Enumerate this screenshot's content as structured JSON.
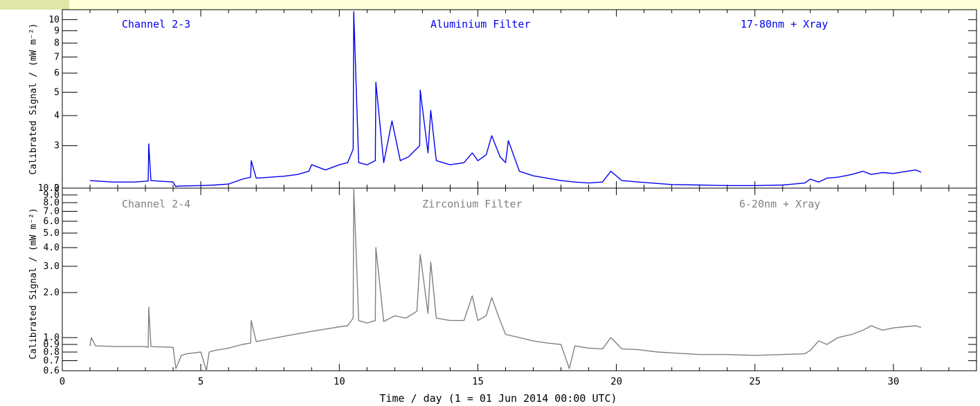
{
  "chart_data": [
    {
      "type": "line",
      "panel": "top",
      "channel_label": "Channel 2-3",
      "filter_label": "Aluminium Filter",
      "band_label": "17-80nm + Xray",
      "ylabel": "Calibrated Signal / (mW m⁻²)",
      "yscale": "log",
      "ylim": [
        2,
        11
      ],
      "yticks": [
        2,
        3,
        4,
        5,
        6,
        7,
        8,
        9,
        10
      ],
      "ytick_labels": [
        "2",
        "3",
        "4",
        "5",
        "6",
        "7",
        "8",
        "9",
        "10"
      ],
      "xlim": [
        0,
        33
      ],
      "series": [
        {
          "color": "#0000ee",
          "x": [
            1.0,
            1.8,
            2.6,
            3.1,
            3.12,
            3.2,
            4.0,
            4.1,
            4.2,
            5.0,
            5.5,
            6.0,
            6.5,
            6.8,
            6.82,
            7.0,
            7.5,
            8.0,
            8.5,
            8.9,
            9.0,
            9.5,
            10.0,
            10.3,
            10.5,
            10.52,
            10.7,
            11.0,
            11.3,
            11.32,
            11.6,
            11.9,
            12.2,
            12.5,
            12.9,
            12.92,
            13.2,
            13.3,
            13.5,
            14.0,
            14.5,
            14.8,
            15.0,
            15.3,
            15.5,
            15.8,
            16.0,
            16.1,
            16.5,
            17.0,
            17.5,
            18.0,
            18.5,
            19.0,
            19.5,
            19.8,
            20.2,
            20.8,
            21.5,
            22.0,
            23.0,
            24.0,
            25.0,
            26.0,
            26.8,
            27.0,
            27.3,
            27.6,
            28.0,
            28.5,
            28.9,
            29.2,
            29.6,
            30.0,
            30.4,
            30.8,
            31.0
          ],
          "y": [
            2.15,
            2.12,
            2.12,
            2.14,
            3.05,
            2.15,
            2.12,
            2.03,
            2.04,
            2.05,
            2.06,
            2.08,
            2.18,
            2.22,
            2.6,
            2.2,
            2.22,
            2.24,
            2.28,
            2.35,
            2.5,
            2.38,
            2.5,
            2.55,
            2.9,
            10.8,
            2.55,
            2.5,
            2.6,
            5.5,
            2.55,
            3.8,
            2.6,
            2.7,
            3.0,
            5.1,
            2.8,
            4.2,
            2.6,
            2.5,
            2.55,
            2.8,
            2.6,
            2.75,
            3.3,
            2.7,
            2.55,
            3.15,
            2.35,
            2.25,
            2.2,
            2.15,
            2.12,
            2.1,
            2.12,
            2.35,
            2.15,
            2.12,
            2.09,
            2.07,
            2.06,
            2.05,
            2.05,
            2.06,
            2.1,
            2.18,
            2.12,
            2.2,
            2.22,
            2.28,
            2.35,
            2.28,
            2.32,
            2.3,
            2.34,
            2.38,
            2.33
          ]
        }
      ]
    },
    {
      "type": "line",
      "panel": "bottom",
      "channel_label": "Channel 2-4",
      "filter_label": "Zirconium Filter",
      "band_label": "6-20nm + Xray",
      "xlabel": "Time / day (1 = 01 Jun 2014 00:00 UTC)",
      "ylabel": "Calibrated Signal / (mW m⁻²)",
      "yscale": "log",
      "ylim": [
        0.6,
        10
      ],
      "yticks": [
        0.6,
        0.7,
        0.8,
        0.9,
        1.0,
        2.0,
        3.0,
        4.0,
        5.0,
        6.0,
        7.0,
        8.0,
        9.0,
        10.0
      ],
      "ytick_labels": [
        "0.6",
        "0.7",
        "0.8",
        "0.9",
        "1.0",
        "2.0",
        "3.0",
        "4.0",
        "5.0",
        "6.0",
        "7.0",
        "8.0",
        "9.0",
        "10.0"
      ],
      "xlim": [
        0,
        33
      ],
      "xticks": [
        0,
        5,
        10,
        15,
        20,
        25,
        30
      ],
      "xtick_labels": [
        "0",
        "5",
        "10",
        "15",
        "20",
        "25",
        "30"
      ],
      "series": [
        {
          "color": "#808080",
          "x": [
            1.0,
            1.05,
            1.2,
            2.0,
            3.0,
            3.1,
            3.12,
            3.2,
            4.0,
            4.1,
            4.3,
            4.5,
            5.0,
            5.2,
            5.3,
            5.5,
            6.0,
            6.5,
            6.8,
            6.82,
            7.0,
            7.5,
            8.0,
            8.5,
            9.0,
            9.5,
            10.0,
            10.3,
            10.5,
            10.52,
            10.7,
            11.0,
            11.3,
            11.32,
            11.6,
            12.0,
            12.4,
            12.8,
            12.92,
            13.2,
            13.3,
            13.5,
            14.0,
            14.5,
            14.8,
            15.0,
            15.3,
            15.5,
            15.8,
            16.0,
            16.5,
            17.0,
            17.5,
            18.0,
            18.3,
            18.5,
            19.0,
            19.5,
            19.8,
            20.2,
            20.8,
            21.5,
            22.0,
            23.0,
            24.0,
            25.0,
            26.0,
            26.8,
            27.0,
            27.3,
            27.6,
            28.0,
            28.5,
            28.9,
            29.2,
            29.6,
            30.0,
            30.4,
            30.8,
            31.0
          ],
          "y": [
            0.88,
            1.0,
            0.88,
            0.87,
            0.87,
            0.86,
            1.6,
            0.87,
            0.86,
            0.62,
            0.76,
            0.78,
            0.8,
            0.6,
            0.8,
            0.82,
            0.85,
            0.9,
            0.92,
            1.3,
            0.94,
            0.98,
            1.02,
            1.06,
            1.1,
            1.14,
            1.18,
            1.2,
            1.35,
            10.0,
            1.3,
            1.25,
            1.3,
            4.0,
            1.28,
            1.4,
            1.35,
            1.5,
            3.6,
            1.45,
            3.2,
            1.35,
            1.3,
            1.3,
            1.9,
            1.3,
            1.4,
            1.85,
            1.3,
            1.05,
            1.0,
            0.95,
            0.92,
            0.9,
            0.62,
            0.88,
            0.85,
            0.84,
            1.0,
            0.84,
            0.83,
            0.8,
            0.79,
            0.77,
            0.77,
            0.76,
            0.77,
            0.78,
            0.82,
            0.95,
            0.9,
            1.0,
            1.05,
            1.12,
            1.2,
            1.12,
            1.16,
            1.18,
            1.2,
            1.17
          ]
        }
      ]
    }
  ]
}
